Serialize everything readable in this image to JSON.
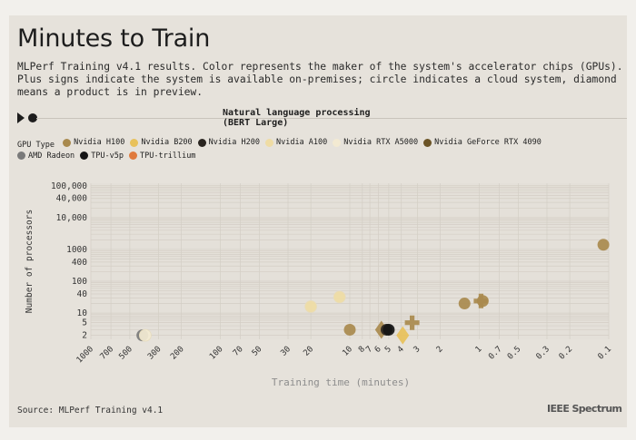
{
  "title": "Minutes to Train",
  "subtitle": "MLPerf Training v4.1 results. Color represents the maker of the system's accelerator chips (GPUs). Plus signs indicate the system is available on-premises; circle indicates a cloud system, diamond means a product is in preview.",
  "slider": {
    "label_line1": "Natural language processing",
    "label_line2": "(BERT Large)"
  },
  "legend": {
    "title": "GPU Type",
    "items": [
      {
        "label": "Nvidia H100",
        "color": "#a98a4e"
      },
      {
        "label": "Nvidia B200",
        "color": "#e8c15a"
      },
      {
        "label": "Nvidia H200",
        "color": "#2a2520"
      },
      {
        "label": "Nvidia A100",
        "color": "#efdca4"
      },
      {
        "label": "Nvidia RTX A5000",
        "color": "#f3ead2"
      },
      {
        "label": "Nvidia GeForce RTX 4090",
        "color": "#6b5426"
      },
      {
        "label": "AMD Radeon",
        "color": "#7a7a7a"
      },
      {
        "label": "TPU-v5p",
        "color": "#151515"
      },
      {
        "label": "TPU-trillium",
        "color": "#e07a3c"
      }
    ]
  },
  "source": "Source: MLPerf Training v4.1",
  "brand": "IEEE Spectrum",
  "chart_data": {
    "type": "scatter",
    "title": "Natural language processing (BERT Large)",
    "xlabel": "Training time (minutes)",
    "ylabel": "Number of processors",
    "x_scale": "log-reversed",
    "y_scale": "log",
    "xlim": [
      1000,
      0.1
    ],
    "ylim": [
      1.5,
      120000
    ],
    "x_ticks": [
      1000,
      700,
      500,
      300,
      200,
      100,
      70,
      50,
      30,
      20,
      10,
      8,
      7,
      6,
      5,
      4,
      3,
      2,
      1,
      0.7,
      0.5,
      0.3,
      0.2,
      0.1
    ],
    "x_tick_labels": [
      "1000",
      "700",
      "500",
      "300",
      "200",
      "100",
      "70",
      "50",
      "30",
      "20",
      "10",
      "8",
      "7",
      "6",
      "5",
      "4",
      "3",
      "2",
      "1",
      "0.7",
      "0.5",
      "0.3",
      "0.2",
      "0.1"
    ],
    "y_ticks": [
      2,
      5,
      10,
      40,
      100,
      400,
      1000,
      10000,
      40000,
      100000
    ],
    "y_tick_labels": [
      "2",
      "5",
      "10",
      "40",
      "100",
      "400",
      "1000",
      "10,000",
      "40,000",
      "100,000"
    ],
    "points": [
      {
        "x": 400,
        "y": 2,
        "gpu": "AMD Radeon",
        "shape": "circle"
      },
      {
        "x": 380,
        "y": 2,
        "gpu": "Nvidia RTX A5000",
        "shape": "circle"
      },
      {
        "x": 20,
        "y": 16,
        "gpu": "Nvidia A100",
        "shape": "circle"
      },
      {
        "x": 12,
        "y": 32,
        "gpu": "Nvidia A100",
        "shape": "circle"
      },
      {
        "x": 10,
        "y": 3,
        "gpu": "Nvidia H100",
        "shape": "circle"
      },
      {
        "x": 5.7,
        "y": 3,
        "gpu": "Nvidia H100",
        "shape": "diamond"
      },
      {
        "x": 5.2,
        "y": 3,
        "gpu": "Nvidia H200",
        "shape": "circle"
      },
      {
        "x": 5.0,
        "y": 3,
        "gpu": "TPU-v5p",
        "shape": "circle"
      },
      {
        "x": 3.9,
        "y": 2,
        "gpu": "Nvidia B200",
        "shape": "diamond"
      },
      {
        "x": 3.3,
        "y": 5,
        "gpu": "Nvidia H100",
        "shape": "plus"
      },
      {
        "x": 1.3,
        "y": 20,
        "gpu": "Nvidia H100",
        "shape": "circle"
      },
      {
        "x": 0.97,
        "y": 24,
        "gpu": "Nvidia H100",
        "shape": "plus"
      },
      {
        "x": 0.94,
        "y": 24,
        "gpu": "Nvidia H100",
        "shape": "circle"
      },
      {
        "x": 0.11,
        "y": 1400,
        "gpu": "Nvidia H100",
        "shape": "circle"
      }
    ]
  }
}
